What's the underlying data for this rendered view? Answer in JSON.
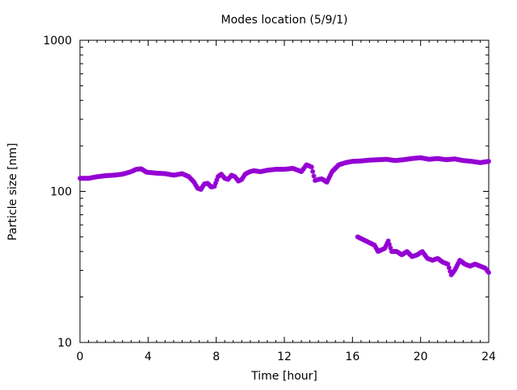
{
  "chart_data": {
    "type": "scatter",
    "title": "Modes location (5/9/1)",
    "xlabel": "Time [hour]",
    "ylabel": "Particle size [nm]",
    "xlim": [
      0,
      24
    ],
    "ylim": [
      10,
      1000
    ],
    "yscale": "log",
    "xticks": [
      0,
      4,
      8,
      12,
      16,
      20,
      24
    ],
    "xtick_labels": [
      "0",
      "4",
      "8",
      "12",
      "16",
      "20",
      "24"
    ],
    "yticks": [
      10,
      100,
      1000
    ],
    "ytick_labels": [
      "10",
      "100",
      "1000"
    ],
    "grid": false,
    "marker_color": "#9400d3",
    "series": [
      {
        "x": [
          0.0,
          0.5,
          1.0,
          1.5,
          2.0,
          2.5,
          3.0,
          3.3,
          3.6,
          3.9,
          4.2,
          4.5,
          5.0,
          5.5,
          6.0,
          6.4,
          6.7,
          6.9,
          7.1,
          7.3,
          7.5,
          7.7,
          7.9,
          8.1,
          8.3,
          8.5,
          8.7,
          8.9,
          9.1,
          9.3,
          9.5,
          9.7,
          9.9,
          10.2,
          10.6,
          11.0,
          11.5,
          12.0,
          12.5,
          12.8,
          13.0,
          13.3,
          13.6,
          13.8,
          14.0,
          14.2,
          14.5,
          14.8,
          15.2,
          15.6,
          16.0,
          16.5,
          17.0,
          17.5,
          18.0,
          18.5,
          19.0,
          19.5,
          20.0,
          20.5,
          21.0,
          21.5,
          22.0,
          22.5,
          23.0,
          23.5,
          24.0
        ],
        "y": [
          122,
          122,
          125,
          127,
          128,
          130,
          135,
          140,
          141,
          134,
          133,
          132,
          131,
          128,
          131,
          125,
          115,
          105,
          103,
          112,
          113,
          107,
          108,
          125,
          130,
          122,
          120,
          128,
          125,
          117,
          120,
          130,
          134,
          137,
          135,
          138,
          140,
          140,
          142,
          138,
          135,
          150,
          145,
          118,
          120,
          121,
          115,
          135,
          150,
          155,
          158,
          159,
          161,
          162,
          163,
          160,
          162,
          165,
          167,
          163,
          165,
          162,
          164,
          160,
          158,
          155,
          158
        ]
      },
      {
        "x": [
          16.3,
          17.3,
          17.5,
          17.7,
          17.9,
          18.1,
          18.3,
          18.6,
          18.9,
          19.2,
          19.5,
          19.8,
          20.1,
          20.4,
          20.7,
          21.0,
          21.3,
          21.6,
          21.8,
          22.0,
          22.3,
          22.6,
          22.9,
          23.2,
          23.5,
          23.8,
          24.0
        ],
        "y": [
          50,
          44,
          40,
          41,
          42,
          47,
          40,
          40,
          38,
          40,
          37,
          38,
          40,
          36,
          35,
          36,
          34,
          33,
          28,
          30,
          35,
          33,
          32,
          33,
          32,
          31,
          29
        ]
      }
    ]
  }
}
